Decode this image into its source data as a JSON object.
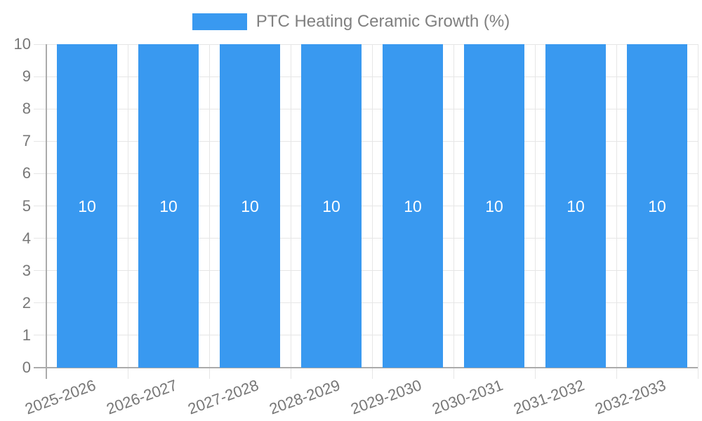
{
  "chart_data": {
    "type": "bar",
    "title": "",
    "legend_entries": [
      "PTC Heating Ceramic Growth (%)"
    ],
    "legend_position": "top",
    "categories": [
      "2025-2026",
      "2026-2027",
      "2027-2028",
      "2028-2029",
      "2029-2030",
      "2030-2031",
      "2031-2032",
      "2032-2033"
    ],
    "values": [
      10,
      10,
      10,
      10,
      10,
      10,
      10,
      10
    ],
    "data_labels": [
      "10",
      "10",
      "10",
      "10",
      "10",
      "10",
      "10",
      "10"
    ],
    "xlabel": "",
    "ylabel": "",
    "ylim": [
      0,
      10
    ],
    "yticks": [
      0,
      1,
      2,
      3,
      4,
      5,
      6,
      7,
      8,
      9,
      10
    ],
    "grid": true,
    "x_label_rotation_deg": -20,
    "colors": {
      "bar": "#3999F0",
      "grid": "#e6e6e6",
      "axis": "#ababab",
      "tick_text": "#777777",
      "legend_text": "#808080",
      "bar_label": "#ffffff"
    }
  }
}
